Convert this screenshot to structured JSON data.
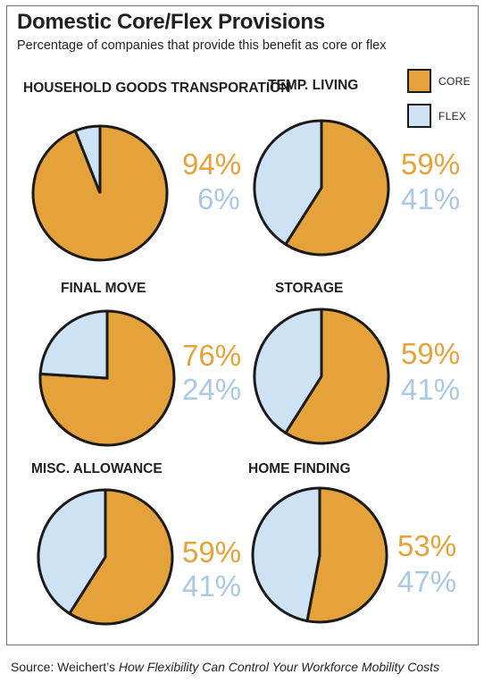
{
  "title": "Domestic Core/Flex Provisions",
  "subtitle": "Percentage of companies that provide this benefit as core or flex",
  "legend": [
    {
      "label": "CORE",
      "color": "#e5a13a"
    },
    {
      "label": "FLEX",
      "color": "#cde2f5"
    }
  ],
  "colors": {
    "core": "#e5a13a",
    "flex": "#cde2f5",
    "outline": "#1a1a1a",
    "core_text": "#e5a13a",
    "flex_text": "#a9c8e6"
  },
  "source": {
    "prefix": "Source: Weichert’s ",
    "title": "How Flexibility Can Control Your Workforce Mobility Costs"
  },
  "chart_data": [
    {
      "type": "pie",
      "title": "HOUSEHOLD GOODS TRANSPORATION",
      "labels": [
        "CORE",
        "FLEX"
      ],
      "values": [
        94,
        6
      ],
      "value_labels": [
        "94%",
        "6%"
      ]
    },
    {
      "type": "pie",
      "title": "TEMP. LIVING",
      "labels": [
        "CORE",
        "FLEX"
      ],
      "values": [
        59,
        41
      ],
      "value_labels": [
        "59%",
        "41%"
      ]
    },
    {
      "type": "pie",
      "title": "FINAL MOVE",
      "labels": [
        "CORE",
        "FLEX"
      ],
      "values": [
        76,
        24
      ],
      "value_labels": [
        "76%",
        "24%"
      ]
    },
    {
      "type": "pie",
      "title": "STORAGE",
      "labels": [
        "CORE",
        "FLEX"
      ],
      "values": [
        59,
        41
      ],
      "value_labels": [
        "59%",
        "41%"
      ]
    },
    {
      "type": "pie",
      "title": "MISC. ALLOWANCE",
      "labels": [
        "CORE",
        "FLEX"
      ],
      "values": [
        59,
        41
      ],
      "value_labels": [
        "59%",
        "41%"
      ]
    },
    {
      "type": "pie",
      "title": "HOME FINDING",
      "labels": [
        "CORE",
        "FLEX"
      ],
      "values": [
        53,
        47
      ],
      "value_labels": [
        "53%",
        "47%"
      ]
    }
  ]
}
